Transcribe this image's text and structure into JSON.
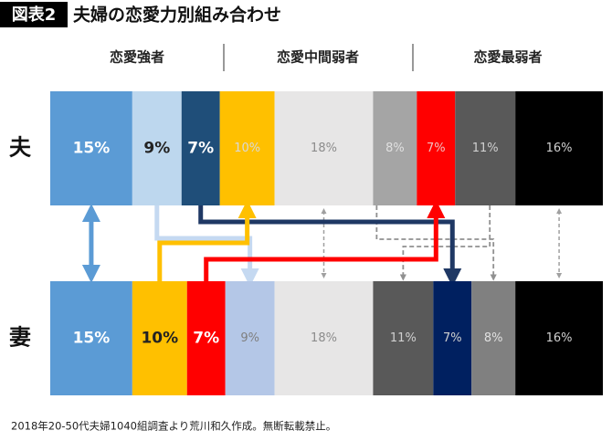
{
  "chart_data": {
    "type": "stacked_bar",
    "badge": "図表2",
    "title": "夫婦の恋愛力別組み合わせ",
    "groups": [
      "恋愛強者",
      "恋愛中間弱者",
      "恋愛最弱者"
    ],
    "rows": [
      {
        "label": "夫",
        "values": [
          15,
          9,
          7,
          10,
          18,
          8,
          7,
          11,
          16
        ],
        "value_labels": [
          "15%",
          "9%",
          "7%",
          "10%",
          "18%",
          "8%",
          "7%",
          "11%",
          "16%"
        ],
        "colors": [
          "#5b9bd5",
          "#bdd7ee",
          "#1f4e79",
          "#ffc000",
          "#e7e6e6",
          "#a5a5a5",
          "#ff0000",
          "#595959",
          "#000000"
        ],
        "label_colors": [
          "#ffffff",
          "#222222",
          "#ffffff",
          "#d9d9d9",
          "#8c8c8c",
          "#e0e0e0",
          "#f2c0c0",
          "#d0d0d0",
          "#d0d0d0"
        ]
      },
      {
        "label": "妻",
        "values": [
          15,
          10,
          7,
          9,
          18,
          11,
          7,
          8,
          16
        ],
        "value_labels": [
          "15%",
          "10%",
          "7%",
          "9%",
          "18%",
          "11%",
          "7%",
          "8%",
          "16%"
        ],
        "colors": [
          "#5b9bd5",
          "#ffc000",
          "#ff0000",
          "#b4c7e7",
          "#e7e6e6",
          "#595959",
          "#002060",
          "#808080",
          "#000000"
        ],
        "label_colors": [
          "#ffffff",
          "#222222",
          "#ffffff",
          "#7f7f7f",
          "#8c8c8c",
          "#d0d0d0",
          "#d0d0d0",
          "#e0e0e0",
          "#d0d0d0"
        ]
      }
    ],
    "source": "2018年20-50代夫婦1040組調査より荒川和久作成。無断転載禁止。"
  }
}
